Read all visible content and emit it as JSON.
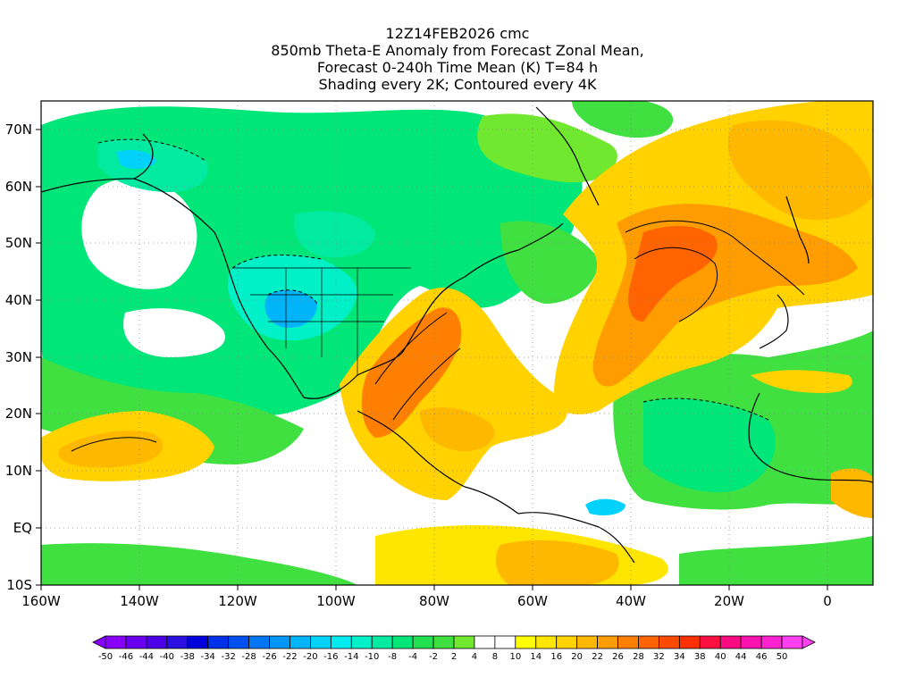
{
  "title": {
    "line1": "12Z14FEB2026 cmc",
    "line2": "850mb Theta-E Anomaly from Forecast Zonal Mean,",
    "line3": "Forecast 0-240h Time Mean (K) T=84 h",
    "line4": "Shading every 2K; Contoured every 4K"
  },
  "axes": {
    "lat_labels": [
      "70N",
      "60N",
      "50N",
      "40N",
      "30N",
      "20N",
      "10N",
      "EQ",
      "10S"
    ],
    "lon_labels": [
      "160W",
      "140W",
      "120W",
      "100W",
      "80W",
      "60W",
      "40W",
      "20W",
      "0"
    ]
  },
  "colorbar": {
    "labels": [
      "-50",
      "-46",
      "-44",
      "-40",
      "-38",
      "-34",
      "-32",
      "-28",
      "-26",
      "-22",
      "-20",
      "-16",
      "-14",
      "-10",
      "-8",
      "-4",
      "-2",
      "2",
      "4",
      "8",
      "10",
      "14",
      "16",
      "20",
      "22",
      "26",
      "28",
      "32",
      "34",
      "38",
      "40",
      "44",
      "46",
      "50"
    ],
    "colors": [
      "#8800ff",
      "#6a00f0",
      "#4b00e6",
      "#2a10e0",
      "#0000dd",
      "#0030e8",
      "#0050f0",
      "#0078f5",
      "#0096f8",
      "#00b4fa",
      "#00d2fc",
      "#00ecf0",
      "#00f0c8",
      "#00eaa0",
      "#00e678",
      "#20e050",
      "#40e040",
      "#70e830",
      "#ffffff",
      "#ffffff",
      "#ffff00",
      "#ffe600",
      "#ffd200",
      "#ffb800",
      "#ff9c00",
      "#ff8000",
      "#ff6400",
      "#ff4a00",
      "#ff3000",
      "#ff1040",
      "#ff0a80",
      "#ff10b0",
      "#ff20d0",
      "#ff40f0"
    ]
  }
}
